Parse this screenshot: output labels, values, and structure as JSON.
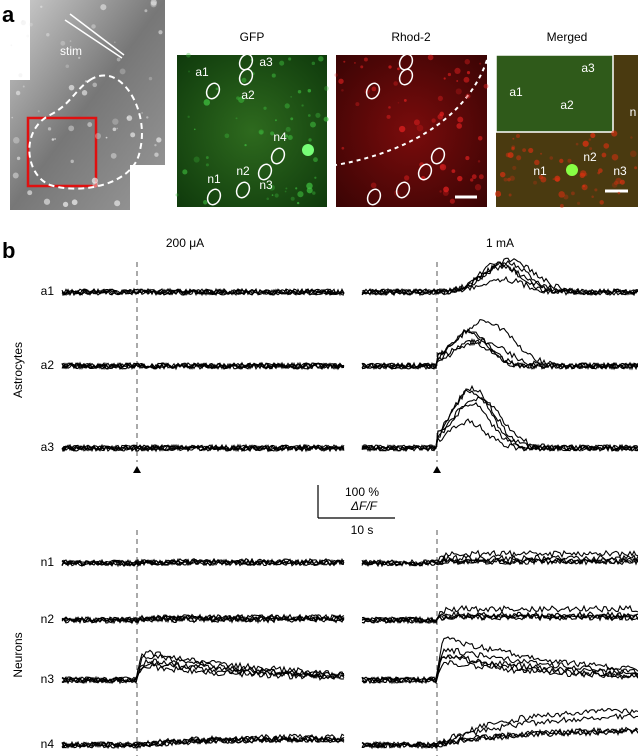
{
  "panel_a": {
    "label": "a",
    "stim": "stim",
    "gfp": {
      "title": "GFP",
      "cells": [
        "a1",
        "a3",
        "a2",
        "n4",
        "n1",
        "n2",
        "n3"
      ]
    },
    "rhod": {
      "title": "Rhod-2"
    },
    "merged": {
      "title": "Merged",
      "cells": [
        "a1",
        "a3",
        "a2",
        "n1",
        "n2",
        "n3",
        "n"
      ]
    }
  },
  "panel_b": {
    "label": "b",
    "conditions": [
      "200 μA",
      "1 mA"
    ],
    "astrocytes": {
      "label": "Astrocytes",
      "rows": [
        "a1",
        "a2",
        "a3"
      ]
    },
    "neurons": {
      "label": "Neurons",
      "rows": [
        "n1",
        "n2",
        "n3",
        "n4"
      ]
    },
    "scale_bar": {
      "amplitude": "100 %",
      "unit": "ΔF/F",
      "time": "10 s"
    }
  }
}
